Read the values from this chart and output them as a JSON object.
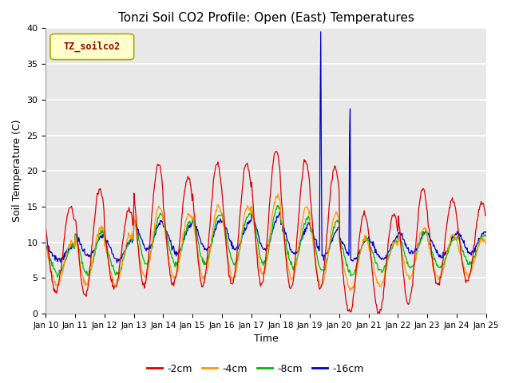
{
  "title": "Tonzi Soil CO2 Profile: Open (East) Temperatures",
  "xlabel": "Time",
  "ylabel": "Soil Temperature (C)",
  "legend_label": "TZ_soilco2",
  "series_labels": [
    "-2cm",
    "-4cm",
    "-8cm",
    "-16cm"
  ],
  "series_colors": [
    "#dd0000",
    "#ff9900",
    "#00bb00",
    "#0000cc"
  ],
  "ylim": [
    0,
    40
  ],
  "bg_color": "#e8e8e8",
  "grid_color": "#ffffff",
  "tick_labels": [
    "Jan 10",
    "Jan 11",
    "Jan 12",
    "Jan 13",
    "Jan 14",
    "Jan 15",
    "Jan 16",
    "Jan 17",
    "Jan 18",
    "Jan 19",
    "Jan 20",
    "Jan 21",
    "Jan 22",
    "Jan 23",
    "Jan 24",
    "Jan 25"
  ],
  "n_days": 15,
  "samples_per_day": 48,
  "daily_amps_2cm": [
    6,
    7.5,
    5.5,
    8.5,
    7.5,
    8.5,
    8.5,
    9.5,
    9,
    8.5,
    7,
    7,
    8,
    6,
    5.5
  ],
  "daily_base_2cm": [
    9,
    10,
    9,
    12.5,
    11.5,
    12.5,
    12.5,
    13.5,
    12.5,
    12,
    7,
    7,
    9.5,
    10,
    10
  ],
  "daily_amps_4cm": [
    3,
    4,
    3.5,
    5,
    4.5,
    5,
    5,
    5.5,
    5,
    5,
    3.5,
    3,
    3.5,
    3,
    2.5
  ],
  "daily_base_4cm": [
    7,
    8,
    7.5,
    10,
    9.5,
    10,
    10,
    11,
    10,
    9,
    7,
    7,
    8.5,
    8,
    8
  ],
  "daily_amps_8cm": [
    2,
    3,
    2.5,
    3.5,
    3,
    3.5,
    3.5,
    4,
    3.5,
    3.5,
    2.5,
    2,
    2.5,
    2,
    2
  ],
  "daily_base_8cm": [
    7.5,
    8.5,
    8,
    10.5,
    10,
    10.5,
    10.5,
    11,
    10,
    9.5,
    8,
    8,
    9,
    8.5,
    9
  ],
  "daily_amps_16cm": [
    1,
    1.5,
    1.5,
    2,
    2,
    2,
    2,
    2.5,
    2,
    2,
    1.5,
    1.5,
    1.5,
    1.5,
    1.5
  ],
  "daily_base_16cm": [
    8.5,
    9.5,
    9,
    11,
    10.5,
    11,
    11,
    11.5,
    10.5,
    10,
    9,
    9,
    10,
    9.5,
    10
  ],
  "spike1_day": 9,
  "spike1_vals": [
    27.5,
    39.5,
    21.0,
    10.5
  ],
  "spike2_day": 10,
  "spike2_vals": [
    25.0,
    28.7,
    12.5,
    12.5
  ]
}
